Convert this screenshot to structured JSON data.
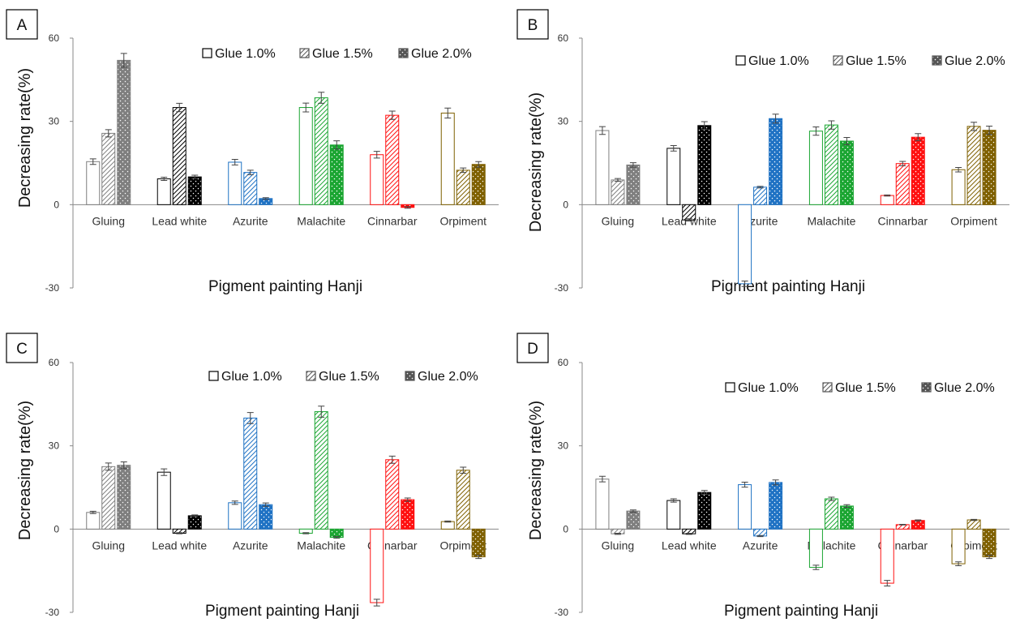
{
  "legend": [
    "Glue 1.0%",
    "Glue 1.5%",
    "Glue 2.0%"
  ],
  "categories": [
    "Gluing",
    "Lead white",
    "Azurite",
    "Malachite",
    "Cinnarbar",
    "Orpiment"
  ],
  "category_colors": [
    "#7f7f7f",
    "#000000",
    "#1f72c4",
    "#1aa531",
    "#ff1010",
    "#7f6000"
  ],
  "legend_colors": [
    "#000000",
    "#555555",
    "#555555"
  ],
  "patterns": [
    "hollow",
    "hatch",
    "dots"
  ],
  "chart_data": [
    {
      "type": "bar",
      "panel_label": "A",
      "xlabel": "Pigment painting Hanji",
      "ylabel": "Decreasing rate(%)",
      "ylim": [
        -30,
        60
      ],
      "yticks": [
        -30,
        0,
        30,
        60
      ],
      "grid": false,
      "legend": "top-right",
      "categories": [
        "Gluing",
        "Lead white",
        "Azurite",
        "Malachite",
        "Cinnarbar",
        "Orpiment"
      ],
      "series": [
        {
          "name": "Glue 1.0%",
          "values": [
            15.5,
            9.3,
            15.3,
            35,
            18,
            33
          ],
          "errors": [
            1,
            0.6,
            1,
            1.6,
            1.2,
            1.8
          ]
        },
        {
          "name": "Glue 1.5%",
          "values": [
            25.7,
            35,
            11.6,
            38.5,
            32.2,
            12.4
          ],
          "errors": [
            1.3,
            1.5,
            0.8,
            2,
            1.5,
            0.8
          ]
        },
        {
          "name": "Glue 2.0%",
          "values": [
            52,
            10,
            2.2,
            21.5,
            -1,
            14.5
          ],
          "errors": [
            2.5,
            0.6,
            0.3,
            1.5,
            0.3,
            1
          ]
        }
      ]
    },
    {
      "type": "bar",
      "panel_label": "B",
      "xlabel": "Pigment painting Hanji",
      "ylabel": "Decreasing rate(%)",
      "ylim": [
        -30,
        60
      ],
      "yticks": [
        -30,
        0,
        30,
        60
      ],
      "grid": false,
      "legend": "top-right",
      "categories": [
        "Gluing",
        "Lead white",
        "Azurite",
        "Malachite",
        "Cinnarbar",
        "Orpiment"
      ],
      "series": [
        {
          "name": "Glue 1.0%",
          "values": [
            26.7,
            20.3,
            -28.5,
            26.5,
            3.3,
            12.6
          ],
          "errors": [
            1.4,
            1,
            1,
            1.5,
            0.2,
            0.8
          ]
        },
        {
          "name": "Glue 1.5%",
          "values": [
            8.9,
            -5.5,
            6.3,
            28.7,
            14.8,
            28.2
          ],
          "errors": [
            0.5,
            0.4,
            0.3,
            1.5,
            0.8,
            1.5
          ]
        },
        {
          "name": "Glue 2.0%",
          "values": [
            14.3,
            28.5,
            31,
            22.9,
            24.3,
            26.8
          ],
          "errors": [
            0.8,
            1.4,
            1.6,
            1.3,
            1.3,
            1.5
          ]
        }
      ]
    },
    {
      "type": "bar",
      "panel_label": "C",
      "xlabel": "Pigment painting Hanji",
      "ylabel": "Decreasing rate(%)",
      "ylim": [
        -30,
        60
      ],
      "yticks": [
        -30,
        0,
        30,
        60
      ],
      "grid": false,
      "legend": "top-right",
      "categories": [
        "Gluing",
        "Lead white",
        "Azurite",
        "Malachite",
        "Cinnarbar",
        "Orpiment"
      ],
      "series": [
        {
          "name": "Glue 1.0%",
          "values": [
            6,
            20.5,
            9.5,
            -1.5,
            -26.5,
            2.7
          ],
          "errors": [
            0.4,
            1.2,
            0.6,
            0.2,
            1.2,
            0.2
          ]
        },
        {
          "name": "Glue 1.5%",
          "values": [
            22.5,
            -1.5,
            40,
            42.3,
            25,
            21.2
          ],
          "errors": [
            1.3,
            0.2,
            2,
            2,
            1.3,
            1.1
          ]
        },
        {
          "name": "Glue 2.0%",
          "values": [
            23,
            4.8,
            8.8,
            -3,
            10.6,
            -10
          ],
          "errors": [
            1.2,
            0.3,
            0.6,
            0.3,
            0.6,
            0.6
          ]
        }
      ]
    },
    {
      "type": "bar",
      "panel_label": "D",
      "xlabel": "Pigment painting Hanji",
      "ylabel": "Decreasing rate(%)",
      "ylim": [
        -30,
        60
      ],
      "yticks": [
        -30,
        0,
        30,
        60
      ],
      "grid": false,
      "legend": "top-right",
      "categories": [
        "Gluing",
        "Lead white",
        "Azurite",
        "Malachite",
        "Cinnarbar",
        "Orpiment"
      ],
      "series": [
        {
          "name": "Glue 1.0%",
          "values": [
            18,
            10.3,
            16,
            -13.8,
            -19.5,
            -12.5
          ],
          "errors": [
            1,
            0.6,
            0.9,
            0.8,
            1,
            0.7
          ]
        },
        {
          "name": "Glue 1.5%",
          "values": [
            -1.7,
            -1.7,
            -2.5,
            10.9,
            1.6,
            3.3
          ],
          "errors": [
            0.2,
            0.2,
            0.2,
            0.6,
            0.1,
            0.2
          ]
        },
        {
          "name": "Glue 2.0%",
          "values": [
            6.5,
            13.2,
            16.8,
            8.3,
            3.1,
            -10
          ],
          "errors": [
            0.4,
            0.7,
            0.9,
            0.5,
            0.2,
            0.6
          ]
        }
      ]
    }
  ]
}
